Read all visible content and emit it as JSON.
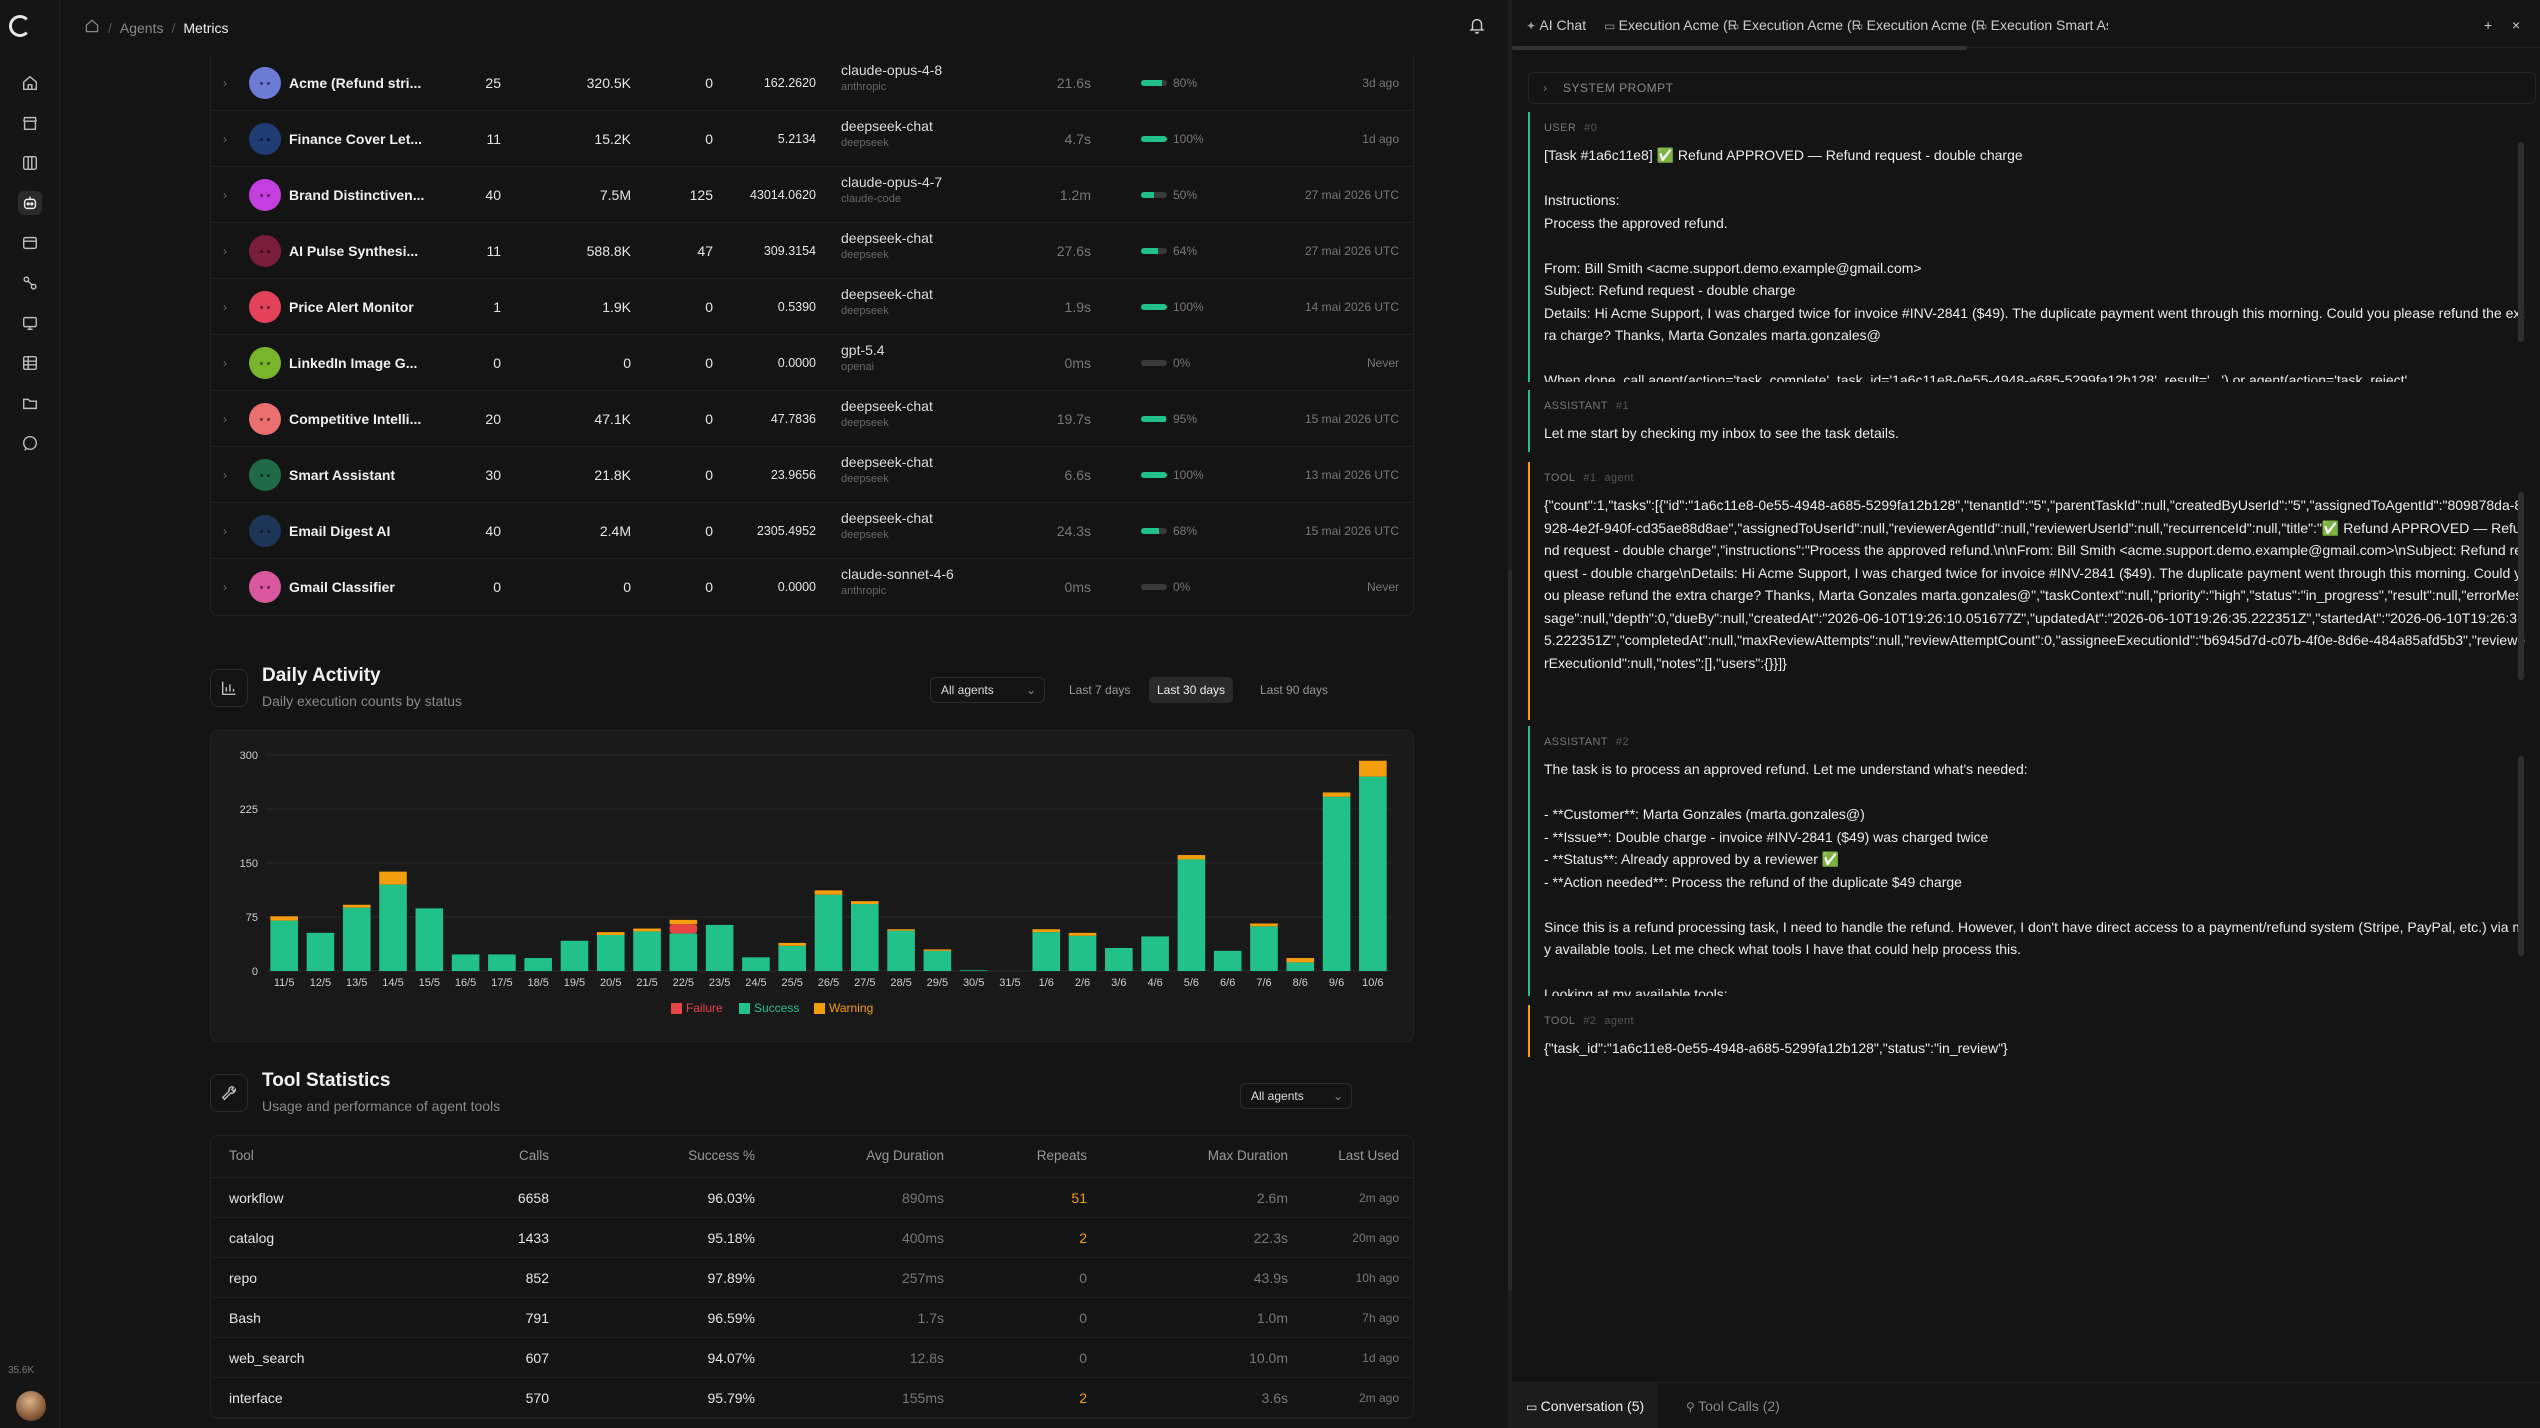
{
  "breadcrumb": {
    "home_icon": "home-icon",
    "agents": "Agents",
    "sep": "/",
    "current": "Metrics"
  },
  "sidebar": {
    "icons": [
      "home-icon",
      "store-icon",
      "columns-icon",
      "bot-icon",
      "window-icon",
      "workflow-icon",
      "monitor-icon",
      "table-icon",
      "folder-icon",
      "chat-icon"
    ],
    "footer_count": "35.6K"
  },
  "agents": [
    {
      "name": "Acme (Refund stri...",
      "color": "#6b7bd6",
      "calls": "25",
      "tokens": "320.5K",
      "errors": "0",
      "cost": "162.2620",
      "model": "claude-opus-4-8",
      "provider": "anthropic",
      "duration": "21.6s",
      "success": 0.8,
      "pct": "80%",
      "last": "3d ago"
    },
    {
      "name": "Finance Cover Let...",
      "color": "#1f3c74",
      "calls": "11",
      "tokens": "15.2K",
      "errors": "0",
      "cost": "5.2134",
      "model": "deepseek-chat",
      "provider": "deepseek",
      "duration": "4.7s",
      "success": 1.0,
      "pct": "100%",
      "last": "1d ago"
    },
    {
      "name": "Brand Distinctiven...",
      "color": "#c43ee0",
      "calls": "40",
      "tokens": "7.5M",
      "errors": "125",
      "cost": "43014.0620",
      "model": "claude-opus-4-7",
      "provider": "claude-code",
      "duration": "1.2m",
      "success": 0.5,
      "pct": "50%",
      "last": "27 mai 2026 UTC"
    },
    {
      "name": "AI Pulse Synthesi...",
      "color": "#7a1d3a",
      "calls": "11",
      "tokens": "588.8K",
      "errors": "47",
      "cost": "309.3154",
      "model": "deepseek-chat",
      "provider": "deepseek",
      "duration": "27.6s",
      "success": 0.64,
      "pct": "64%",
      "last": "27 mai 2026 UTC"
    },
    {
      "name": "Price Alert Monitor",
      "color": "#e2425a",
      "calls": "1",
      "tokens": "1.9K",
      "errors": "0",
      "cost": "0.5390",
      "model": "deepseek-chat",
      "provider": "deepseek",
      "duration": "1.9s",
      "success": 1.0,
      "pct": "100%",
      "last": "14 mai 2026 UTC"
    },
    {
      "name": "LinkedIn Image G...",
      "color": "#79b52b",
      "calls": "0",
      "tokens": "0",
      "errors": "0",
      "cost": "0.0000",
      "model": "gpt-5.4",
      "provider": "openai",
      "duration": "0ms",
      "success": 0.0,
      "pct": "0%",
      "last": "Never"
    },
    {
      "name": "Competitive Intelli...",
      "color": "#ea7070",
      "calls": "20",
      "tokens": "47.1K",
      "errors": "0",
      "cost": "47.7836",
      "model": "deepseek-chat",
      "provider": "deepseek",
      "duration": "19.7s",
      "success": 0.95,
      "pct": "95%",
      "last": "15 mai 2026 UTC"
    },
    {
      "name": "Smart Assistant",
      "color": "#1e6b45",
      "calls": "30",
      "tokens": "21.8K",
      "errors": "0",
      "cost": "23.9656",
      "model": "deepseek-chat",
      "provider": "deepseek",
      "duration": "6.6s",
      "success": 1.0,
      "pct": "100%",
      "last": "13 mai 2026 UTC"
    },
    {
      "name": "Email Digest AI",
      "color": "#1d3557",
      "calls": "40",
      "tokens": "2.4M",
      "errors": "0",
      "cost": "2305.4952",
      "model": "deepseek-chat",
      "provider": "deepseek",
      "duration": "24.3s",
      "success": 0.68,
      "pct": "68%",
      "last": "15 mai 2026 UTC"
    },
    {
      "name": "Gmail Classifier",
      "color": "#d8579e",
      "calls": "0",
      "tokens": "0",
      "errors": "0",
      "cost": "0.0000",
      "model": "claude-sonnet-4-6",
      "provider": "anthropic",
      "duration": "0ms",
      "success": 0.0,
      "pct": "0%",
      "last": "Never"
    }
  ],
  "daily": {
    "title": "Daily Activity",
    "subtitle": "Daily execution counts by status",
    "agent_filter": "All agents",
    "ranges": [
      "Last 7 days",
      "Last 30 days",
      "Last 90 days"
    ],
    "active_range": "Last 30 days"
  },
  "chart_data": {
    "type": "bar",
    "stacked": true,
    "categories": [
      "11/5",
      "12/5",
      "13/5",
      "14/5",
      "15/5",
      "16/5",
      "17/5",
      "18/5",
      "19/5",
      "20/5",
      "21/5",
      "22/5",
      "23/5",
      "24/5",
      "25/5",
      "26/5",
      "27/5",
      "28/5",
      "29/5",
      "30/5",
      "31/5",
      "1/6",
      "2/6",
      "3/6",
      "4/6",
      "5/6",
      "6/6",
      "7/6",
      "8/6",
      "9/6",
      "10/6"
    ],
    "series": [
      {
        "name": "Success",
        "color": "#22c18a",
        "values": [
          70,
          53,
          88,
          120,
          87,
          23,
          23,
          18,
          42,
          50,
          55,
          52,
          64,
          19,
          35,
          106,
          93,
          56,
          28,
          1,
          0,
          54,
          49,
          32,
          48,
          155,
          28,
          62,
          12,
          242,
          270
        ]
      },
      {
        "name": "Failure",
        "color": "#e84545",
        "values": [
          0,
          0,
          0,
          0,
          0,
          0,
          0,
          0,
          0,
          0,
          0,
          13,
          0,
          0,
          0,
          0,
          0,
          0,
          0,
          0,
          0,
          0,
          0,
          0,
          0,
          0,
          0,
          0,
          0,
          0,
          0
        ]
      },
      {
        "name": "Warning",
        "color": "#f59e0b",
        "values": [
          6,
          0,
          4,
          18,
          0,
          0,
          0,
          0,
          0,
          4,
          4,
          6,
          0,
          0,
          4,
          6,
          4,
          2,
          2,
          0,
          0,
          4,
          4,
          0,
          0,
          6,
          0,
          4,
          6,
          6,
          22
        ]
      }
    ],
    "yticks": [
      0,
      75,
      150,
      225,
      300
    ],
    "ylim": [
      0,
      300
    ],
    "legend": [
      "Failure",
      "Success",
      "Warning"
    ],
    "grid": true,
    "legend_position": "bottom"
  },
  "tools": {
    "title": "Tool Statistics",
    "subtitle": "Usage and performance of agent tools",
    "agent_filter": "All agents",
    "headers": [
      "Tool",
      "Calls",
      "Success %",
      "Avg Duration",
      "Repeats",
      "Max Duration",
      "Last Used"
    ],
    "rows": [
      {
        "tool": "workflow",
        "calls": "6658",
        "success": "96.03%",
        "avg": "890ms",
        "repeats": "51",
        "max": "2.6m",
        "last": "2m ago"
      },
      {
        "tool": "catalog",
        "calls": "1433",
        "success": "95.18%",
        "avg": "400ms",
        "repeats": "2",
        "max": "22.3s",
        "last": "20m ago"
      },
      {
        "tool": "repo",
        "calls": "852",
        "success": "97.89%",
        "avg": "257ms",
        "repeats": "0",
        "max": "43.9s",
        "last": "10h ago"
      },
      {
        "tool": "Bash",
        "calls": "791",
        "success": "96.59%",
        "avg": "1.7s",
        "repeats": "0",
        "max": "1.0m",
        "last": "7h ago"
      },
      {
        "tool": "web_search",
        "calls": "607",
        "success": "94.07%",
        "avg": "12.8s",
        "repeats": "0",
        "max": "10.0m",
        "last": "1d ago"
      },
      {
        "tool": "interface",
        "calls": "570",
        "success": "95.79%",
        "avg": "155ms",
        "repeats": "2",
        "max": "3.6s",
        "last": "2m ago"
      }
    ]
  },
  "right_panel": {
    "tabs": [
      "AI Chat",
      "Execution Acme (R...",
      "Execution Acme (R...",
      "Execution Acme (R...",
      "Execution Smart As..."
    ],
    "system_prompt": "SYSTEM PROMPT",
    "messages": [
      {
        "role": "USER",
        "idx": "#0",
        "agent": "",
        "kind": "user",
        "text": "[Task #1a6c11e8] ✅ Refund APPROVED — Refund request - double charge\n\nInstructions:\nProcess the approved refund.\n\nFrom: Bill Smith <acme.support.demo.example@gmail.com>\nSubject: Refund request - double charge\nDetails: Hi Acme Support, I was charged twice for invoice #INV-2841 ($49). The duplicate payment went through this morning. Could you please refund the extra charge? Thanks, Marta Gonzales marta.gonzales@\n\nWhen done, call agent(action='task_complete', task_id='1a6c11e8-0e55-4948-a685-5299fa12b128', result='...') or agent(action='task_reject'"
      },
      {
        "role": "ASSISTANT",
        "idx": "#1",
        "agent": "",
        "kind": "assistant",
        "text": "Let me start by checking my inbox to see the task details."
      },
      {
        "role": "TOOL",
        "idx": "#1",
        "agent": "agent",
        "kind": "tool",
        "text": "{\"count\":1,\"tasks\":[{\"id\":\"1a6c11e8-0e55-4948-a685-5299fa12b128\",\"tenantId\":\"5\",\"parentTaskId\":null,\"createdByUserId\":\"5\",\"assignedToAgentId\":\"809878da-8928-4e2f-940f-cd35ae88d8ae\",\"assignedToUserId\":null,\"reviewerAgentId\":null,\"reviewerUserId\":null,\"recurrenceId\":null,\"title\":\"✅ Refund APPROVED — Refund request - double charge\",\"instructions\":\"Process the approved refund.\\n\\nFrom: Bill Smith <acme.support.demo.example@gmail.com>\\nSubject: Refund request - double charge\\nDetails: Hi Acme Support, I was charged twice for invoice #INV-2841 ($49). The duplicate payment went through this morning. Could you please refund the extra charge? Thanks, Marta Gonzales marta.gonzales@\",\"taskContext\":null,\"priority\":\"high\",\"status\":\"in_progress\",\"result\":null,\"errorMessage\":null,\"depth\":0,\"dueBy\":null,\"createdAt\":\"2026-06-10T19:26:10.051677Z\",\"updatedAt\":\"2026-06-10T19:26:35.222351Z\",\"startedAt\":\"2026-06-10T19:26:35.222351Z\",\"completedAt\":null,\"maxReviewAttempts\":null,\"reviewAttemptCount\":0,\"assigneeExecutionId\":\"b6945d7d-c07b-4f0e-8d6e-484a85afd5b3\",\"reviewerExecutionId\":null,\"notes\":[],\"users\":{}}]}"
      },
      {
        "role": "ASSISTANT",
        "idx": "#2",
        "agent": "",
        "kind": "assistant",
        "text": "The task is to process an approved refund. Let me understand what's needed:\n\n- **Customer**: Marta Gonzales (marta.gonzales@)\n- **Issue**: Double charge - invoice #INV-2841 ($49) was charged twice\n- **Status**: Already approved by a reviewer ✅\n- **Action needed**: Process the refund of the duplicate $49 charge\n\nSince this is a refund processing task, I need to handle the refund. However, I don't have direct access to a payment/refund system (Stripe, PayPal, etc.) via my available tools. Let me check what tools I have that could help process this.\n\nLooking at my available tools:"
      },
      {
        "role": "TOOL",
        "idx": "#2",
        "agent": "agent",
        "kind": "tool",
        "text": "{\"task_id\":\"1a6c11e8-0e55-4948-a685-5299fa12b128\",\"status\":\"in_review\"}"
      }
    ],
    "bottom_tabs": [
      "Conversation (5)",
      "Tool Calls (2)"
    ]
  }
}
